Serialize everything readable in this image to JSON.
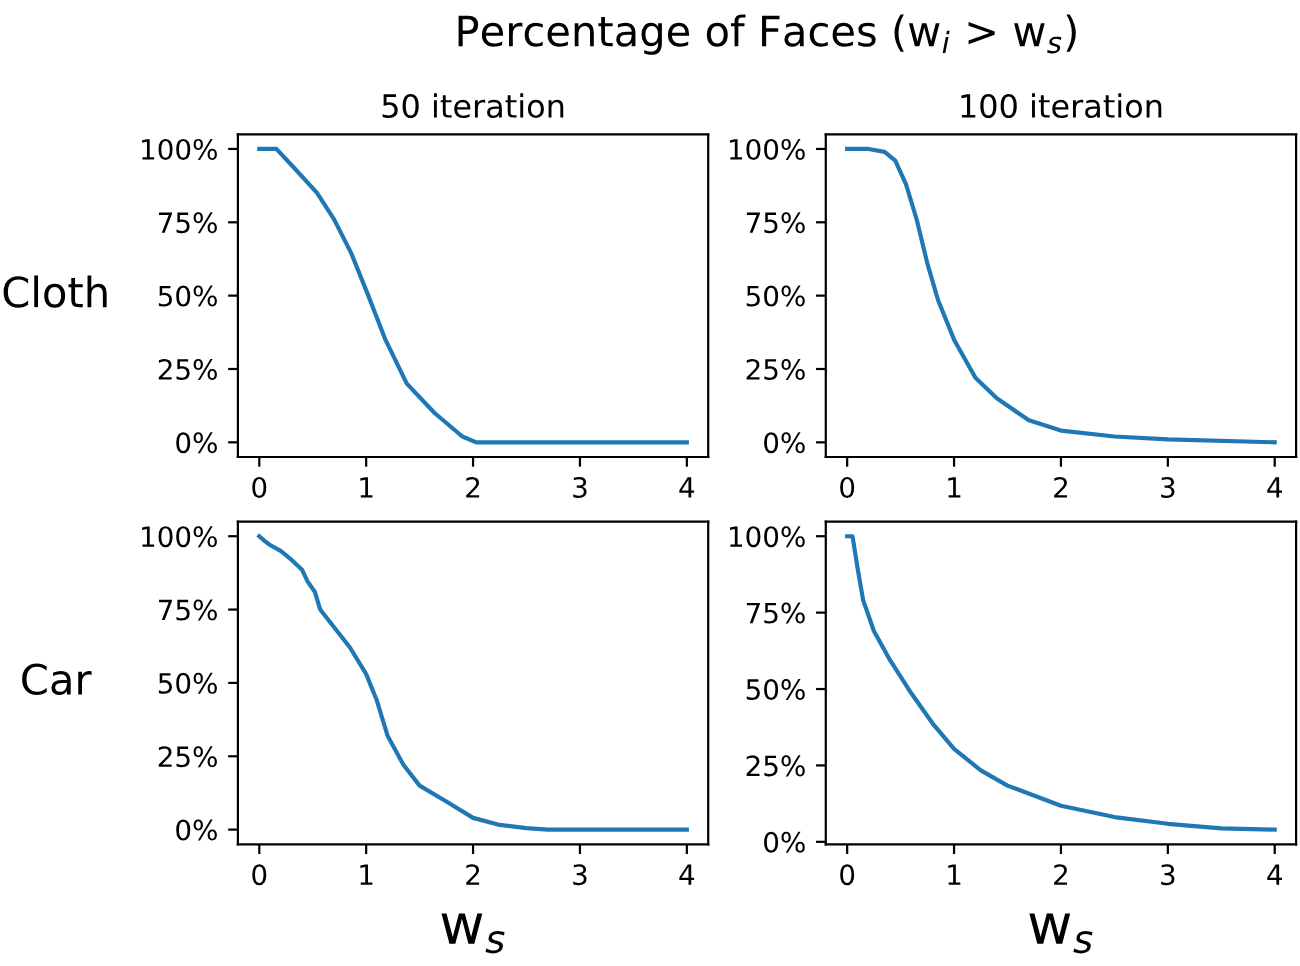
{
  "chart_data": [
    {
      "type": "line",
      "title": "50 iteration",
      "ylabel": "Cloth",
      "annotations": [
        "Percentage of Faces (w$_{i}$ > w$_{s}$)"
      ],
      "color": "#1f77b4",
      "x": [
        0,
        0.16,
        0.34,
        0.54,
        0.7,
        0.86,
        1.02,
        1.18,
        1.38,
        1.64,
        1.9,
        2.03,
        3,
        4
      ],
      "values": [
        100,
        100,
        93,
        85,
        76,
        64.5,
        50,
        35,
        20,
        10,
        2,
        0,
        0,
        0
      ],
      "xlim": [
        -0.2,
        4.2
      ],
      "ylim": [
        -5,
        105
      ],
      "xticks": [
        0,
        1,
        2,
        3,
        4
      ],
      "yticks": [
        {
          "value": 0,
          "label": "0%"
        },
        {
          "value": 25,
          "label": "25%"
        },
        {
          "value": 50,
          "label": "50%"
        },
        {
          "value": 75,
          "label": "75%"
        },
        {
          "value": 100,
          "label": "100%"
        }
      ]
    },
    {
      "type": "line",
      "title": "100 iteration",
      "color": "#1f77b4",
      "x": [
        0,
        0.2,
        0.35,
        0.45,
        0.55,
        0.65,
        0.75,
        0.85,
        1.0,
        1.2,
        1.4,
        1.7,
        2.0,
        2.5,
        3.0,
        4.0
      ],
      "values": [
        100,
        100,
        99,
        96,
        88,
        76,
        61,
        48.5,
        35,
        22,
        15,
        7.5,
        4,
        2,
        1,
        0
      ],
      "xlim": [
        -0.2,
        4.2
      ],
      "ylim": [
        -5,
        105
      ],
      "xticks": [
        0,
        1,
        2,
        3,
        4
      ],
      "yticks": [
        {
          "value": 0,
          "label": "0%"
        },
        {
          "value": 25,
          "label": "25%"
        },
        {
          "value": 50,
          "label": "50%"
        },
        {
          "value": 75,
          "label": "75%"
        },
        {
          "value": 100,
          "label": "100%"
        }
      ]
    },
    {
      "type": "line",
      "ylabel": "Car",
      "xlabel": "w$_{s}$",
      "color": "#1f77b4",
      "x": [
        0,
        0.05,
        0.1,
        0.2,
        0.3,
        0.4,
        0.45,
        0.52,
        0.57,
        0.7,
        0.85,
        1.0,
        1.1,
        1.2,
        1.35,
        1.5,
        1.75,
        2.0,
        2.25,
        2.5,
        2.7,
        4.0
      ],
      "values": [
        100,
        98.4,
        97,
        95,
        92,
        88.6,
        84.7,
        81,
        75,
        69,
        62,
        53,
        44,
        32,
        22,
        15,
        9.6,
        4,
        1.6,
        0.5,
        0,
        0
      ],
      "xlim": [
        -0.2,
        4.2
      ],
      "ylim": [
        -5,
        105
      ],
      "xticks": [
        0,
        1,
        2,
        3,
        4
      ],
      "yticks": [
        {
          "value": 0,
          "label": "0%"
        },
        {
          "value": 25,
          "label": "25%"
        },
        {
          "value": 50,
          "label": "50%"
        },
        {
          "value": 75,
          "label": "75%"
        },
        {
          "value": 100,
          "label": "100%"
        }
      ]
    },
    {
      "type": "line",
      "xlabel": "w$_{s}$",
      "color": "#1f77b4",
      "x": [
        0,
        0.05,
        0.1,
        0.15,
        0.25,
        0.4,
        0.6,
        0.8,
        1.0,
        1.25,
        1.5,
        2.0,
        2.5,
        3.0,
        3.5,
        4.0
      ],
      "values": [
        100,
        100,
        89,
        79,
        69,
        59.5,
        48.6,
        38.7,
        30.4,
        23.4,
        18.4,
        11.8,
        8.1,
        5.9,
        4.4,
        4
      ],
      "xlim": [
        -0.2,
        4.2
      ],
      "ylim": [
        -0.8,
        104.8
      ],
      "xticks": [
        0,
        1,
        2,
        3,
        4
      ],
      "yticks": [
        {
          "value": 0,
          "label": "0%"
        },
        {
          "value": 25,
          "label": "25%"
        },
        {
          "value": 50,
          "label": "50%"
        },
        {
          "value": 75,
          "label": "75%"
        },
        {
          "value": 100,
          "label": "100%"
        }
      ]
    }
  ]
}
